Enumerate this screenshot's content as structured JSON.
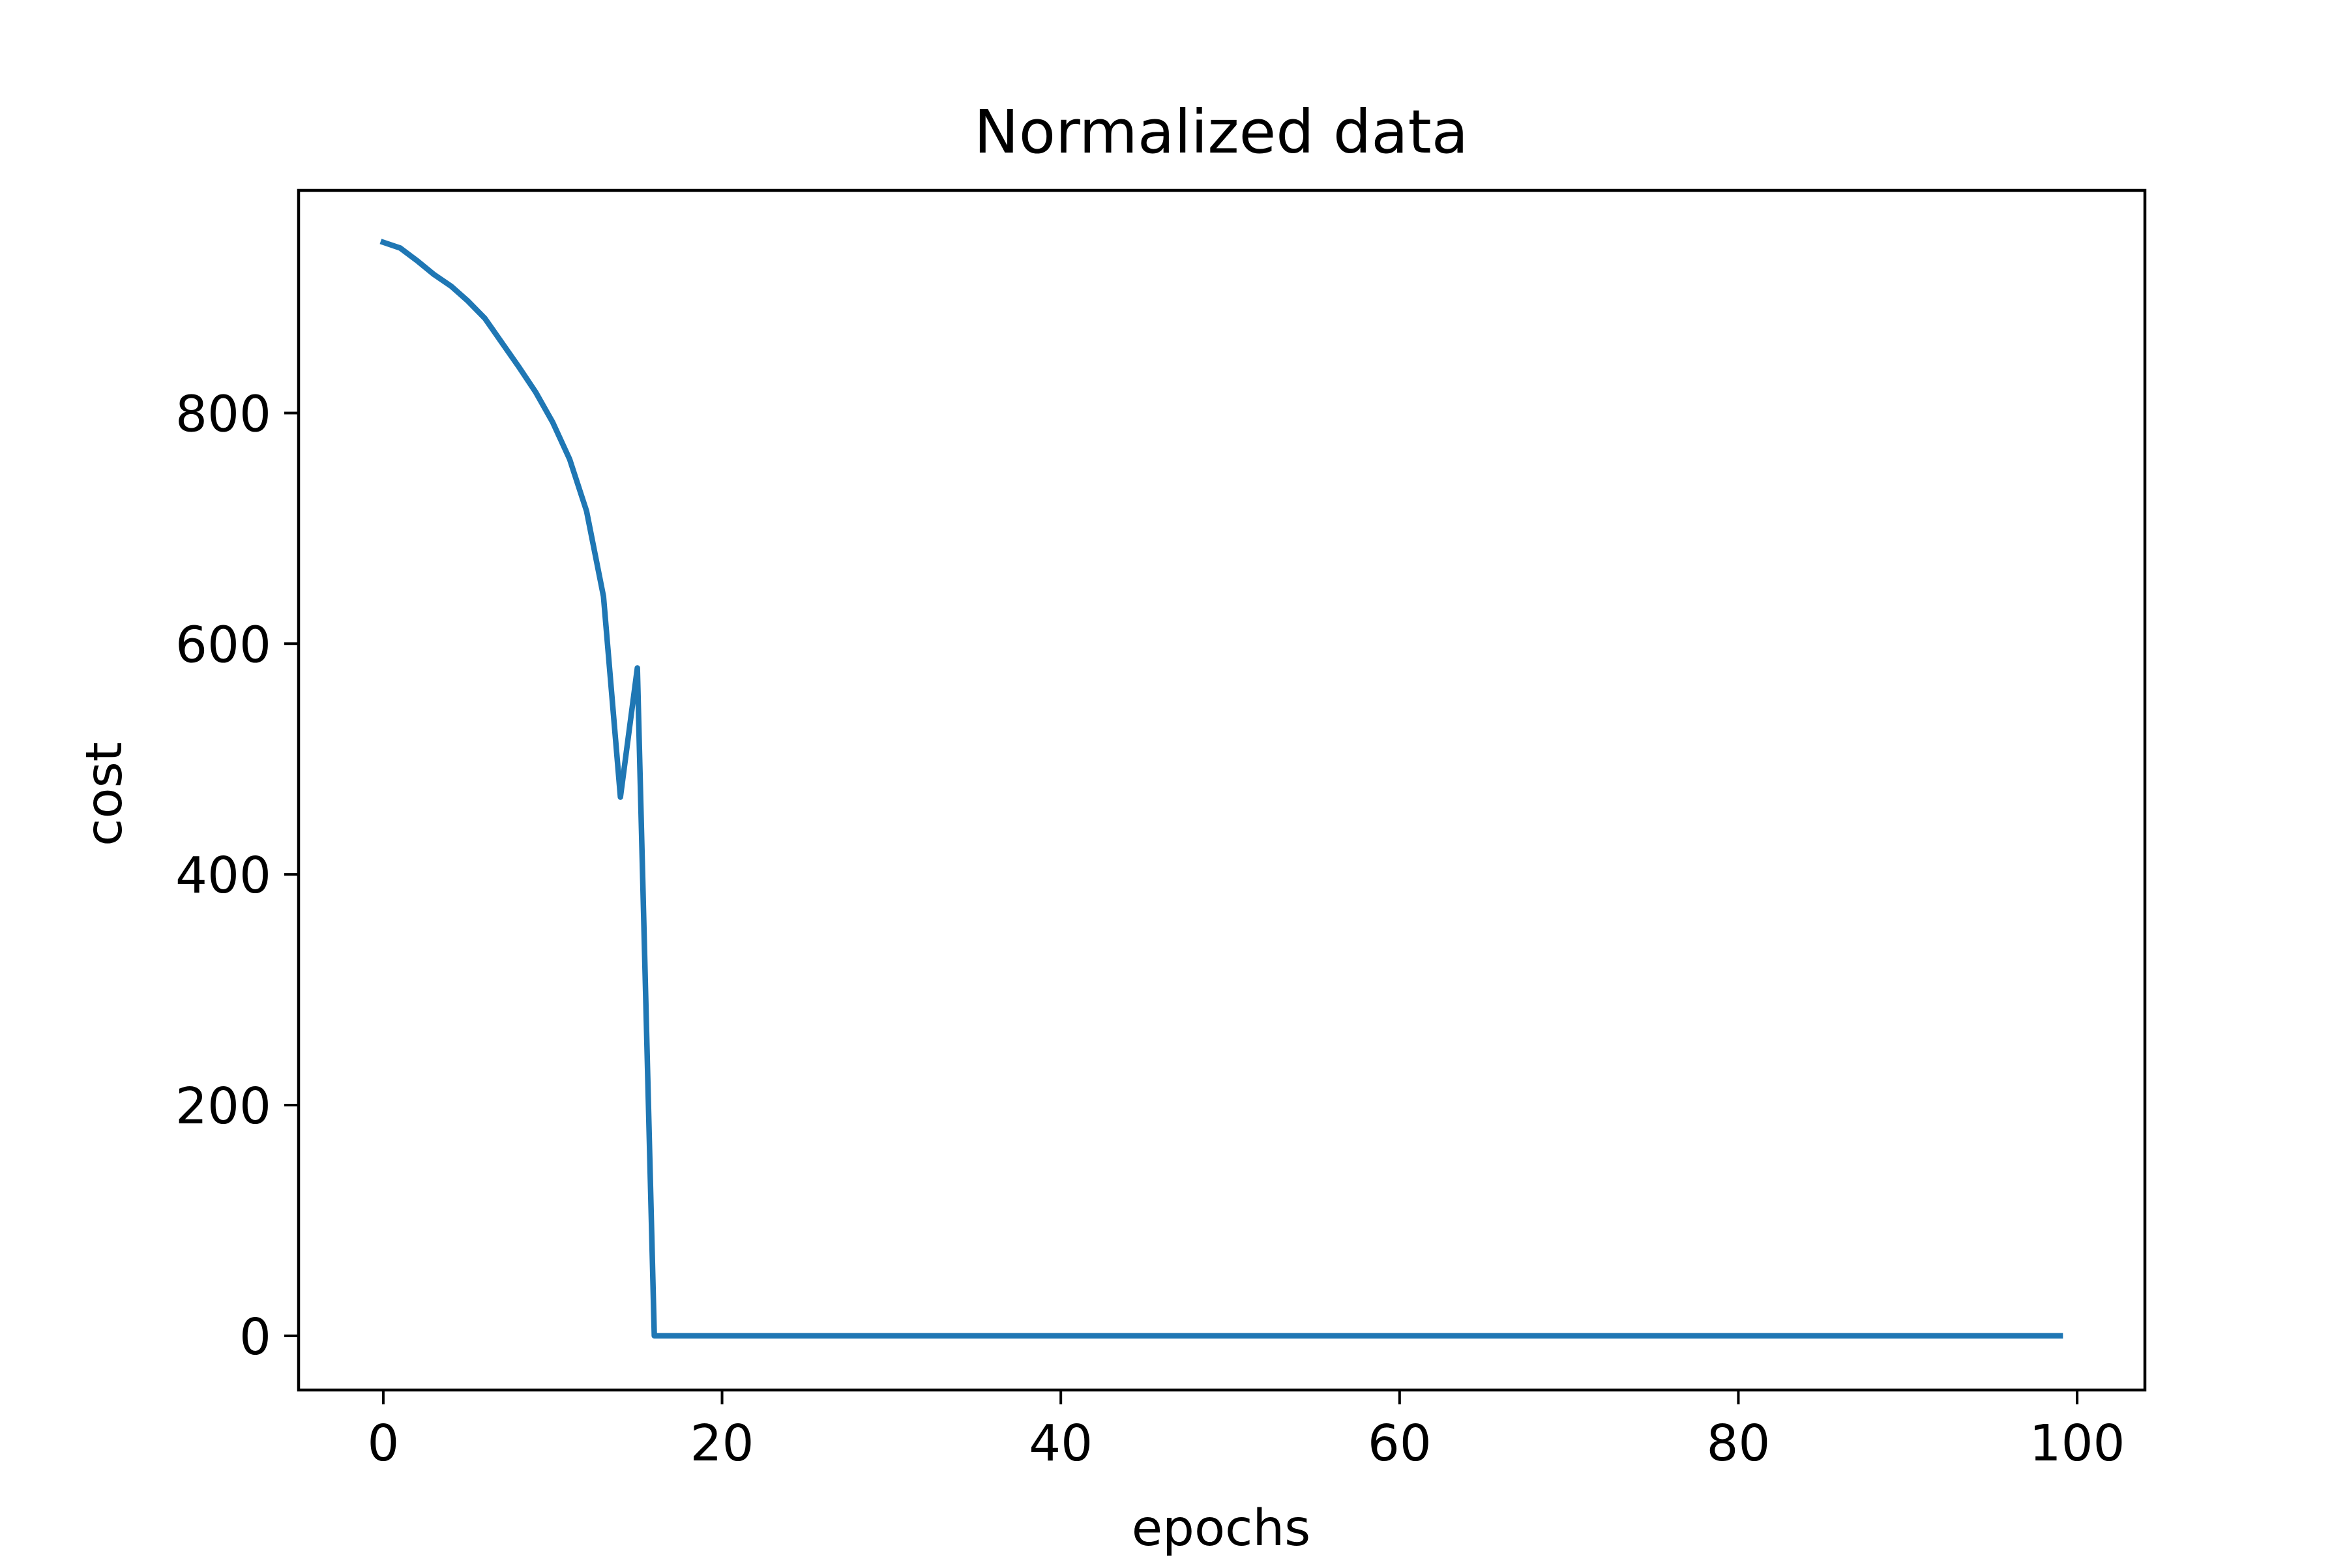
{
  "chart_data": {
    "type": "line",
    "title": "Normalized data",
    "xlabel": "epochs",
    "ylabel": "cost",
    "xlim": [
      -5,
      104
    ],
    "ylim": [
      -47,
      993
    ],
    "xticks": [
      0,
      20,
      40,
      60,
      80,
      100
    ],
    "yticks": [
      0,
      200,
      400,
      600,
      800
    ],
    "xtick_labels": [
      "0",
      "20",
      "40",
      "60",
      "80",
      "100"
    ],
    "ytick_labels": [
      "0",
      "200",
      "400",
      "600",
      "800"
    ],
    "grid": false,
    "legend": false,
    "series": [
      {
        "color": "#1f77b4",
        "x": [
          0,
          1,
          2,
          3,
          4,
          5,
          6,
          7,
          8,
          9,
          10,
          11,
          12,
          13,
          14,
          15,
          16,
          17,
          18,
          19,
          20,
          21,
          22,
          23,
          24,
          25,
          26,
          27,
          28,
          29,
          30,
          31,
          32,
          33,
          34,
          35,
          36,
          37,
          38,
          39,
          40,
          41,
          42,
          43,
          44,
          45,
          46,
          47,
          48,
          49,
          50,
          51,
          52,
          53,
          54,
          55,
          56,
          57,
          58,
          59,
          60,
          61,
          62,
          63,
          64,
          65,
          66,
          67,
          68,
          69,
          70,
          71,
          72,
          73,
          74,
          75,
          76,
          77,
          78,
          79,
          80,
          81,
          82,
          83,
          84,
          85,
          86,
          87,
          88,
          89,
          90,
          91,
          92,
          93,
          94,
          95,
          96,
          97,
          98,
          99
        ],
        "values": [
          948,
          943,
          932,
          920,
          910,
          897,
          882,
          861,
          840,
          818,
          792,
          760,
          715,
          641,
          467,
          579,
          0,
          0,
          0,
          0,
          0,
          0,
          0,
          0,
          0,
          0,
          0,
          0,
          0,
          0,
          0,
          0,
          0,
          0,
          0,
          0,
          0,
          0,
          0,
          0,
          0,
          0,
          0,
          0,
          0,
          0,
          0,
          0,
          0,
          0,
          0,
          0,
          0,
          0,
          0,
          0,
          0,
          0,
          0,
          0,
          0,
          0,
          0,
          0,
          0,
          0,
          0,
          0,
          0,
          0,
          0,
          0,
          0,
          0,
          0,
          0,
          0,
          0,
          0,
          0,
          0,
          0,
          0,
          0,
          0,
          0,
          0,
          0,
          0,
          0,
          0,
          0,
          0,
          0,
          0,
          0,
          0,
          0,
          0,
          0
        ]
      }
    ]
  }
}
